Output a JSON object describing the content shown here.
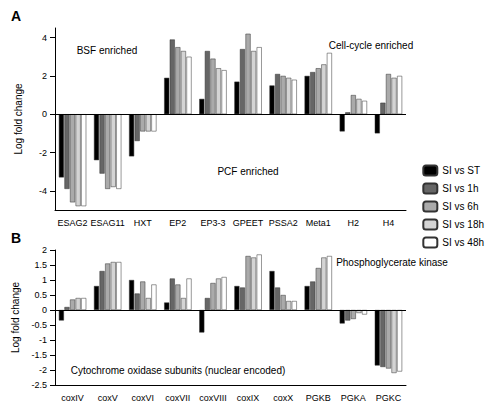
{
  "chart_data": [
    {
      "type": "bar",
      "title": "A",
      "y_label": "Log fold change",
      "categories": [
        "ESAG2",
        "ESAG11",
        "HXT",
        "EP2",
        "EP3-3",
        "GPEET",
        "PSSA2",
        "Meta1",
        "H2",
        "H4"
      ],
      "annotations": [
        "BSF enriched",
        "PCF enriched",
        "Cell-cycle enriched"
      ],
      "series": [
        {
          "name": "SI vs ST",
          "color": "#000000",
          "values": [
            -3.3,
            -2.4,
            -2.2,
            1.9,
            0.8,
            1.7,
            1.5,
            2.0,
            -0.9,
            -1.0
          ]
        },
        {
          "name": "SI vs 1h",
          "color": "#666666",
          "values": [
            -3.9,
            -3.1,
            -1.4,
            3.9,
            3.3,
            3.4,
            2.1,
            2.2,
            0.1,
            0.6
          ]
        },
        {
          "name": "SI vs 6h",
          "color": "#aaaaaa",
          "values": [
            -4.6,
            -3.9,
            -0.9,
            3.5,
            2.9,
            4.2,
            2.0,
            2.4,
            1.0,
            2.1
          ]
        },
        {
          "name": "SI vs 18h",
          "color": "#d4d4d4",
          "values": [
            -4.8,
            -3.8,
            -0.9,
            3.3,
            2.4,
            3.3,
            1.9,
            2.6,
            0.8,
            1.9
          ]
        },
        {
          "name": "SI vs 48h",
          "color": "#ffffff",
          "values": [
            -4.8,
            -3.9,
            -0.9,
            3.0,
            2.3,
            3.5,
            1.8,
            3.2,
            0.7,
            2.0
          ]
        }
      ],
      "ylim": [
        -5,
        4.5
      ],
      "yticks": [
        -4,
        -2,
        0,
        2,
        4
      ],
      "grid": false,
      "legend": "right"
    },
    {
      "type": "bar",
      "title": "B",
      "y_label": "Log fold change",
      "categories": [
        "coxIV",
        "coxV",
        "coxVI",
        "coxVII",
        "coxVIII",
        "coxIX",
        "coxX",
        "PGKB",
        "PGKA",
        "PGKC"
      ],
      "annotations": [
        "Cytochrome oxidase subunits (nuclear encoded)",
        "Phosphoglycerate kinase"
      ],
      "series": [
        {
          "name": "SI vs ST",
          "color": "#000000",
          "values": [
            -0.35,
            0.8,
            1.0,
            0.25,
            -0.75,
            0.8,
            1.3,
            0.8,
            -0.45,
            -1.85
          ]
        },
        {
          "name": "SI vs 1h",
          "color": "#666666",
          "values": [
            0.1,
            1.3,
            0.55,
            1.05,
            0.4,
            0.75,
            0.75,
            0.95,
            -0.35,
            -1.9
          ]
        },
        {
          "name": "SI vs 6h",
          "color": "#aaaaaa",
          "values": [
            0.35,
            1.55,
            0.95,
            0.85,
            0.9,
            1.8,
            0.5,
            1.4,
            -0.3,
            -1.95
          ]
        },
        {
          "name": "SI vs 18h",
          "color": "#d4d4d4",
          "values": [
            0.4,
            1.6,
            0.4,
            0.4,
            1.05,
            1.75,
            0.3,
            1.75,
            -0.1,
            -2.1
          ]
        },
        {
          "name": "SI vs 48h",
          "color": "#ffffff",
          "values": [
            0.4,
            1.6,
            0.85,
            1.05,
            1.1,
            1.85,
            0.3,
            1.8,
            -0.15,
            -2.05
          ]
        }
      ],
      "ylim": [
        -2.5,
        2
      ],
      "yticks": [
        -2.5,
        -2,
        -1.5,
        -1,
        -0.5,
        0,
        0.5,
        1,
        1.5,
        2
      ],
      "grid": false,
      "legend": "right"
    }
  ]
}
